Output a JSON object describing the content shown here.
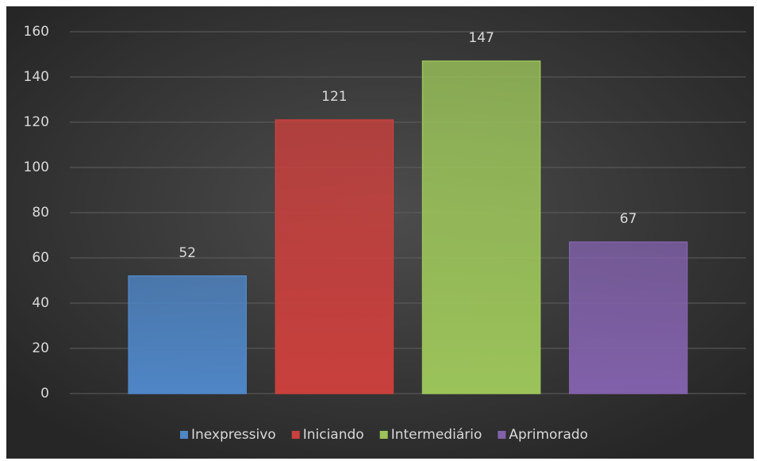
{
  "chart_data": {
    "type": "bar",
    "series": [
      {
        "name": "Inexpressivo",
        "color": "#4f86c6",
        "values": [
          52
        ]
      },
      {
        "name": "Iniciando",
        "color": "#c9403d",
        "values": [
          121
        ]
      },
      {
        "name": "Intermediário",
        "color": "#9bc35a",
        "values": [
          147
        ]
      },
      {
        "name": "Aprimorado",
        "color": "#8161aa",
        "values": [
          67
        ]
      }
    ],
    "ylim": [
      0,
      160
    ],
    "yticks": [
      0,
      20,
      40,
      60,
      80,
      100,
      120,
      140,
      160
    ],
    "grid": true,
    "legend": "bottom"
  }
}
